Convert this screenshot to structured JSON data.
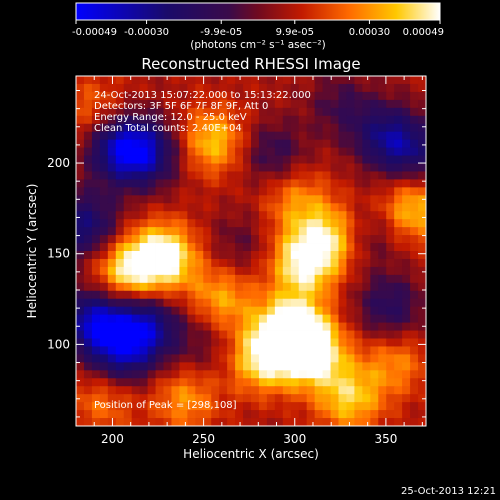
{
  "colorbar": {
    "tick_labels": [
      "-0.00049",
      "-0.00030",
      "-9.9e-05",
      "9.9e-05",
      "0.00030",
      "0.00049"
    ],
    "unit_label": "(photons cm⁻² s⁻¹ asec⁻²)"
  },
  "chart_data": {
    "type": "heatmap",
    "title": "Reconstructed RHESSI Image",
    "xlabel": "Heliocentric X (arcsec)",
    "ylabel": "Heliocentric Y (arcsec)",
    "xlim": [
      180,
      372
    ],
    "ylim": [
      55,
      248
    ],
    "xticks": [
      200,
      250,
      300,
      350
    ],
    "yticks": [
      100,
      150,
      200
    ],
    "value_range": [
      -0.00049,
      0.00049
    ],
    "annotations": [
      "24-Oct-2013 15:07:22.000 to 15:13:22.000",
      "Detectors: 3F 5F 6F 7F 8F 9F, Att 0",
      "Energy Range: 12.0 - 25.0 keV",
      "Clean     Total counts: 2.40E+04"
    ],
    "peak_label": "Position of Peak = [298,108]",
    "peak": [
      298,
      108
    ],
    "blobs": [
      {
        "x": 190,
        "y": 113,
        "v": -0.00045
      },
      {
        "x": 218,
        "y": 110,
        "v": -0.0004
      },
      {
        "x": 205,
        "y": 95,
        "v": -0.00035
      },
      {
        "x": 205,
        "y": 208,
        "v": -0.00045
      },
      {
        "x": 220,
        "y": 205,
        "v": -0.0003
      },
      {
        "x": 185,
        "y": 165,
        "v": -0.00035
      },
      {
        "x": 350,
        "y": 215,
        "v": -0.0003
      },
      {
        "x": 365,
        "y": 205,
        "v": -0.00025
      },
      {
        "x": 288,
        "y": 205,
        "v": -0.0002
      },
      {
        "x": 325,
        "y": 232,
        "v": -0.00015
      },
      {
        "x": 352,
        "y": 120,
        "v": -0.00025
      },
      {
        "x": 340,
        "y": 160,
        "v": -0.00015
      },
      {
        "x": 270,
        "y": 155,
        "v": -0.00012
      },
      {
        "x": 250,
        "y": 100,
        "v": -0.00012
      },
      {
        "x": 228,
        "y": 148,
        "v": 0.00045
      },
      {
        "x": 207,
        "y": 140,
        "v": 0.00035
      },
      {
        "x": 298,
        "y": 108,
        "v": 0.00049
      },
      {
        "x": 310,
        "y": 95,
        "v": 0.0004
      },
      {
        "x": 282,
        "y": 92,
        "v": 0.00035
      },
      {
        "x": 305,
        "y": 145,
        "v": 0.0004
      },
      {
        "x": 320,
        "y": 160,
        "v": 0.0003
      },
      {
        "x": 255,
        "y": 212,
        "v": 0.0003
      },
      {
        "x": 260,
        "y": 125,
        "v": 0.00025
      },
      {
        "x": 365,
        "y": 175,
        "v": 0.0003
      },
      {
        "x": 330,
        "y": 70,
        "v": 0.0003
      },
      {
        "x": 240,
        "y": 70,
        "v": 0.00022
      },
      {
        "x": 300,
        "y": 180,
        "v": 0.0002
      },
      {
        "x": 190,
        "y": 230,
        "v": 0.00015
      },
      {
        "x": 355,
        "y": 90,
        "v": 0.0002
      },
      {
        "x": 195,
        "y": 70,
        "v": 0.00018
      }
    ]
  },
  "footer": {
    "timestamp": "25-Oct-2013 12:21"
  }
}
